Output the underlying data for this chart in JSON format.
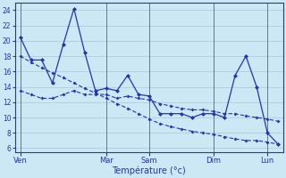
{
  "background_color": "#cde8f5",
  "grid_color": "#aac8dc",
  "line_color": "#2233bb",
  "xlabel": "Température (°c)",
  "ylim": [
    5.5,
    25
  ],
  "yticks": [
    6,
    8,
    10,
    12,
    14,
    16,
    18,
    20,
    22,
    24
  ],
  "day_labels": [
    "Ven",
    "Mar",
    "Sam",
    "Dim",
    "Lun"
  ],
  "day_positions": [
    0,
    8,
    12,
    18,
    23
  ],
  "n_points": 25,
  "series1": [
    20.5,
    17.5,
    17.5,
    14.5,
    19.5,
    24.2,
    18.5,
    13.5,
    13.8,
    13.5,
    15.5,
    13.0,
    12.8,
    10.5,
    10.5,
    10.5,
    10.0,
    10.5,
    10.5,
    10.0,
    15.5,
    18.0,
    14.0,
    8.0,
    6.5
  ],
  "series2": [
    13.5,
    13.0,
    12.5,
    12.5,
    13.0,
    13.5,
    13.0,
    13.0,
    13.0,
    12.5,
    12.8,
    12.5,
    12.3,
    11.8,
    11.5,
    11.2,
    11.0,
    11.0,
    10.8,
    10.5,
    10.5,
    10.2,
    10.0,
    9.8,
    9.5
  ],
  "series3": [
    18.0,
    17.2,
    16.5,
    15.8,
    15.2,
    14.5,
    13.8,
    13.2,
    12.5,
    11.8,
    11.2,
    10.5,
    9.8,
    9.2,
    8.8,
    8.5,
    8.2,
    8.0,
    7.8,
    7.5,
    7.2,
    7.0,
    7.0,
    6.8,
    6.5
  ]
}
